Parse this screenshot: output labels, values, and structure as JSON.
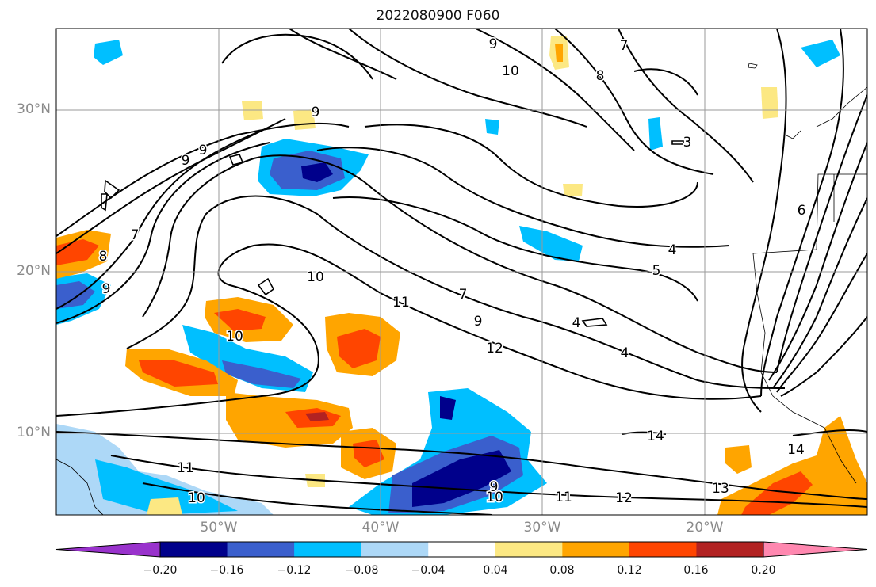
{
  "map": {
    "title": "2022080900 F060",
    "region": "tropical-north-atlantic",
    "lat_labels": [
      "30°N",
      "20°N",
      "10°N"
    ],
    "lon_labels": [
      "50°W",
      "40°W",
      "30°W",
      "20°W"
    ],
    "contour_labels": [
      {
        "text": "9"
      },
      {
        "text": "10"
      },
      {
        "text": "8"
      },
      {
        "text": "7"
      },
      {
        "text": "9"
      },
      {
        "text": "9"
      },
      {
        "text": "9"
      },
      {
        "text": "3"
      },
      {
        "text": "6"
      },
      {
        "text": "7"
      },
      {
        "text": "8"
      },
      {
        "text": "9"
      },
      {
        "text": "10"
      },
      {
        "text": "10"
      },
      {
        "text": "11"
      },
      {
        "text": "7"
      },
      {
        "text": "9"
      },
      {
        "text": "12"
      },
      {
        "text": "4"
      },
      {
        "text": "5"
      },
      {
        "text": "4"
      },
      {
        "text": "4"
      },
      {
        "text": "14"
      },
      {
        "text": "14"
      },
      {
        "text": "13"
      },
      {
        "text": "12"
      },
      {
        "text": "11"
      },
      {
        "text": "10"
      },
      {
        "text": "9"
      },
      {
        "text": "11"
      },
      {
        "text": "10"
      }
    ]
  },
  "colorbar": {
    "ticks": [
      "−0.20",
      "−0.16",
      "−0.12",
      "−0.08",
      "−0.04",
      "0.04",
      "0.08",
      "0.12",
      "0.16",
      "0.20"
    ],
    "colors": [
      "#9932cc",
      "#00008b",
      "#3a5fcd",
      "#00bfff",
      "#add8f7",
      "#ffffff",
      "#fce883",
      "#ffa500",
      "#ff4500",
      "#b22222",
      "#ff88b0"
    ]
  }
}
